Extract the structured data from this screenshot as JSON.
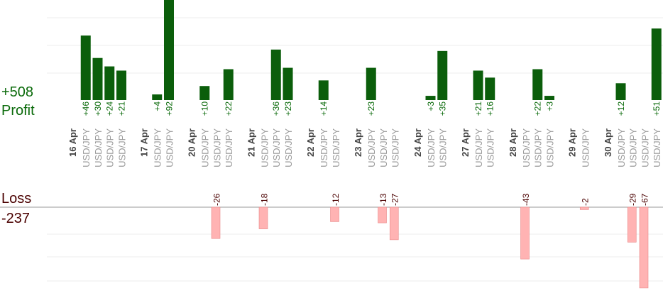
{
  "summary": {
    "profit_total": "+508",
    "profit_label": "Profit",
    "loss_label": "Loss",
    "loss_total": "-237"
  },
  "colors": {
    "profit_bar": "#0b5e0b",
    "profit_text": "#0a6a0a",
    "loss_bar": "#ffb3b3",
    "loss_text": "#4a0000",
    "date_text": "#444444",
    "symbol_text": "#999999",
    "grid": "#eeeeee",
    "axis": "#999999"
  },
  "chart_data": {
    "type": "bar",
    "title": "",
    "xlabel": "",
    "ylabel": "",
    "profit_ylim": [
      0,
      185
    ],
    "loss_ylim": [
      0,
      68
    ],
    "grid": true,
    "days": [
      {
        "date": "16 Apr",
        "trades": [
          {
            "symbol": "USD/JPY",
            "value": 46,
            "label": "+46"
          },
          {
            "symbol": "USD/JPY",
            "value": 30,
            "label": "+30"
          },
          {
            "symbol": "USD/JPY",
            "value": 24,
            "label": "+24"
          },
          {
            "symbol": "USD/JPY",
            "value": 21,
            "label": "+21"
          }
        ]
      },
      {
        "date": "17 Apr",
        "trades": [
          {
            "symbol": "USD/JPY",
            "value": 4,
            "label": "+4"
          },
          {
            "symbol": "USD/JPY",
            "value": 92,
            "label": "+92"
          }
        ]
      },
      {
        "date": "20 Apr",
        "trades": [
          {
            "symbol": "USD/JPY",
            "value": 10,
            "label": "+10"
          },
          {
            "symbol": "USD/JPY",
            "value": -26,
            "label": "-26"
          },
          {
            "symbol": "USD/JPY",
            "value": 22,
            "label": "+22"
          }
        ]
      },
      {
        "date": "21 Apr",
        "trades": [
          {
            "symbol": "USD/JPY",
            "value": -18,
            "label": "-18"
          },
          {
            "symbol": "USD/JPY",
            "value": 36,
            "label": "+36"
          },
          {
            "symbol": "USD/JPY",
            "value": 23,
            "label": "+23"
          }
        ]
      },
      {
        "date": "22 Apr",
        "trades": [
          {
            "symbol": "USD/JPY",
            "value": 14,
            "label": "+14"
          },
          {
            "symbol": "USD/JPY",
            "value": -12,
            "label": "-12"
          }
        ]
      },
      {
        "date": "23 Apr",
        "trades": [
          {
            "symbol": "USD/JPY",
            "value": 23,
            "label": "+23"
          },
          {
            "symbol": "USD/JPY",
            "value": -13,
            "label": "-13"
          },
          {
            "symbol": "USD/JPY",
            "value": -27,
            "label": "-27"
          }
        ]
      },
      {
        "date": "24 Apr",
        "trades": [
          {
            "symbol": "USD/JPY",
            "value": 3,
            "label": "+3"
          },
          {
            "symbol": "USD/JPY",
            "value": 35,
            "label": "+35"
          }
        ]
      },
      {
        "date": "27 Apr",
        "trades": [
          {
            "symbol": "USD/JPY",
            "value": 21,
            "label": "+21"
          },
          {
            "symbol": "USD/JPY",
            "value": 16,
            "label": "+16"
          }
        ]
      },
      {
        "date": "28 Apr",
        "trades": [
          {
            "symbol": "USD/JPY",
            "value": -43,
            "label": "-43"
          },
          {
            "symbol": "USD/JPY",
            "value": 22,
            "label": "+22"
          },
          {
            "symbol": "USD/JPY",
            "value": 3,
            "label": "+3"
          }
        ]
      },
      {
        "date": "29 Apr",
        "trades": [
          {
            "symbol": "USD/JPY",
            "value": -2,
            "label": "-2"
          }
        ]
      },
      {
        "date": "30 Apr",
        "trades": [
          {
            "symbol": "USD/JPY",
            "value": 12,
            "label": "+12"
          },
          {
            "symbol": "USD/JPY",
            "value": -29,
            "label": "-29"
          },
          {
            "symbol": "USD/JPY",
            "value": -67,
            "label": "-67"
          },
          {
            "symbol": "USD/JPY",
            "value": 51,
            "label": "+51"
          }
        ]
      }
    ]
  }
}
